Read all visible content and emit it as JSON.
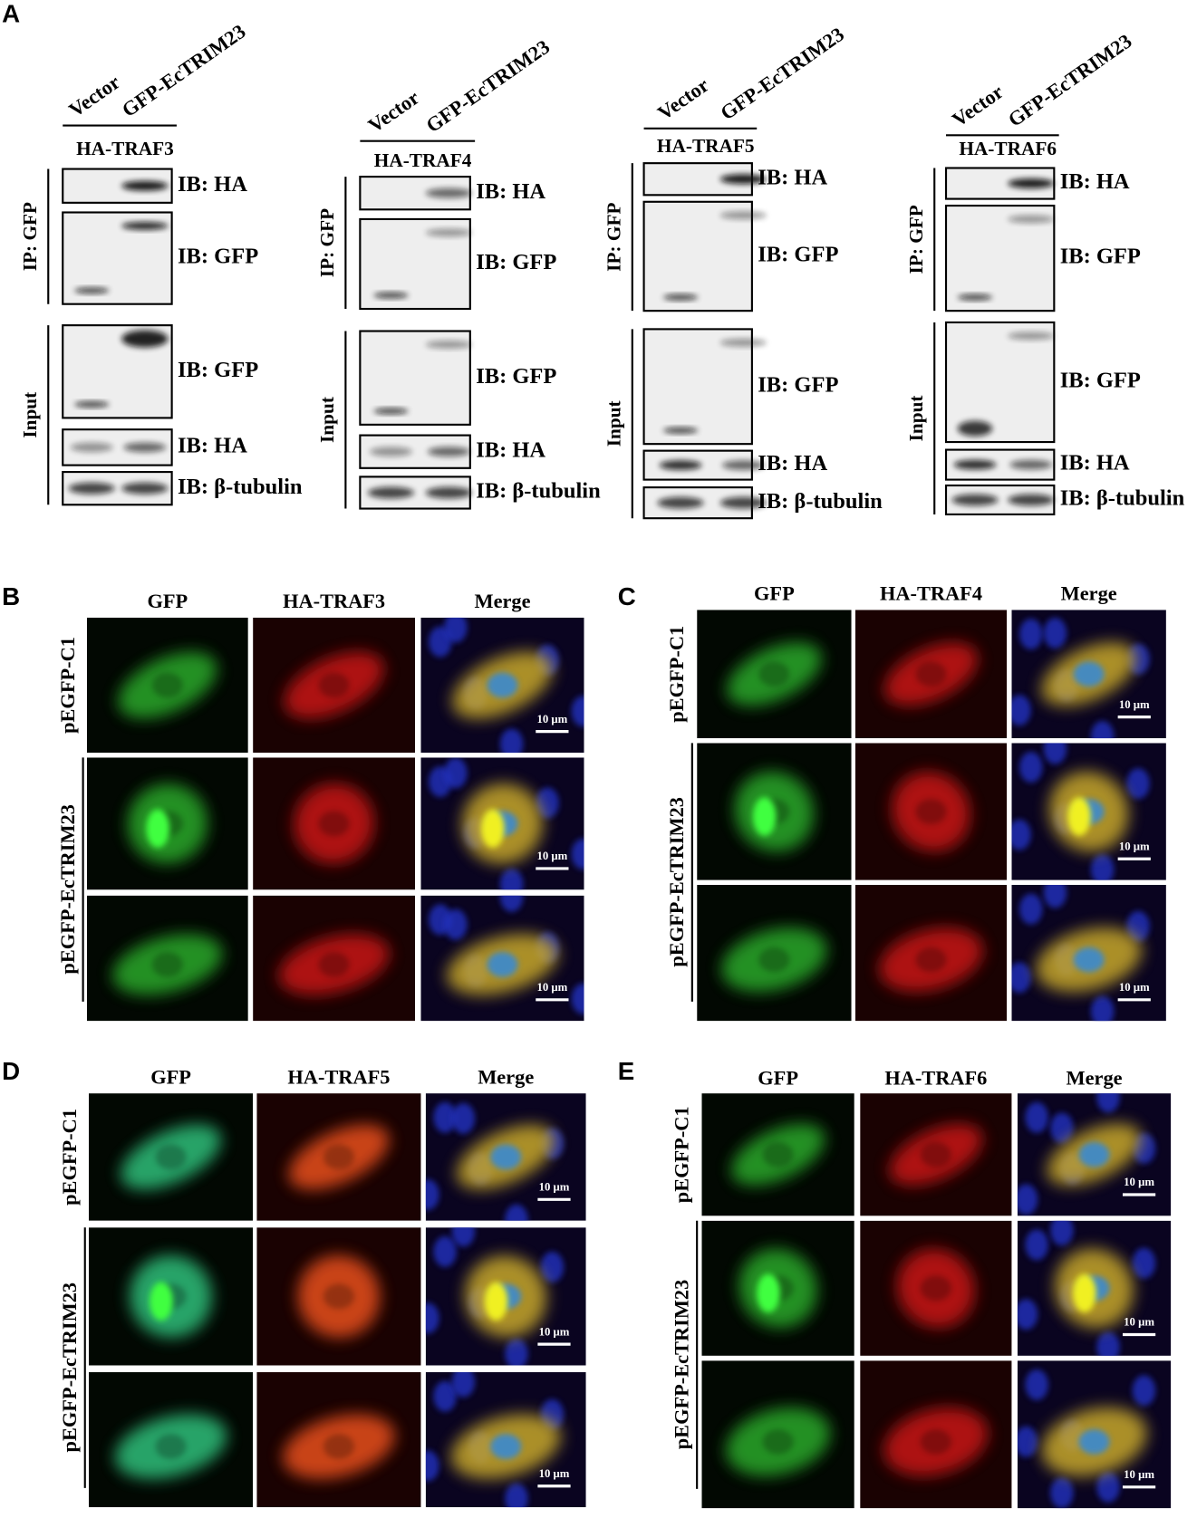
{
  "panel_a": {
    "label": "A",
    "blots": [
      {
        "lanes": [
          "Vector",
          "GFP-EcTRIM23"
        ],
        "construct": "HA-TRAF3",
        "groups": [
          "IP: GFP",
          "Input"
        ],
        "probes": [
          "IB: HA",
          "IB: GFP",
          "IB: GFP",
          "IB: HA",
          "IB: β-tubulin"
        ]
      },
      {
        "lanes": [
          "Vector",
          "GFP-EcTRIM23"
        ],
        "construct": "HA-TRAF4",
        "groups": [
          "IP: GFP",
          "Input"
        ],
        "probes": [
          "IB: HA",
          "IB: GFP",
          "IB: GFP",
          "IB: HA",
          "IB: β-tubulin"
        ]
      },
      {
        "lanes": [
          "Vector",
          "GFP-EcTRIM23"
        ],
        "construct": "HA-TRAF5",
        "groups": [
          "IP: GFP",
          "Input"
        ],
        "probes": [
          "IB: HA",
          "IB: GFP",
          "IB: GFP",
          "IB: HA",
          "IB: β-tubulin"
        ]
      },
      {
        "lanes": [
          "Vector",
          "GFP-EcTRIM23"
        ],
        "construct": "HA-TRAF6",
        "groups": [
          "IP: GFP",
          "Input"
        ],
        "probes": [
          "IB: HA",
          "IB: GFP",
          "IB: GFP",
          "IB: HA",
          "IB: β-tubulin"
        ]
      }
    ]
  },
  "panels": [
    {
      "label": "B",
      "columns": [
        "GFP",
        "HA-TRAF3",
        "Merge"
      ],
      "rows": [
        "pEGFP-C1",
        "pEGFP-EcTRIM23"
      ],
      "scale_bars": [
        "10 μm",
        "10 μm",
        "10 μm"
      ]
    },
    {
      "label": "C",
      "columns": [
        "GFP",
        "HA-TRAF4",
        "Merge"
      ],
      "rows": [
        "pEGFP-C1",
        "pEGFP-EcTRIM23"
      ],
      "scale_bars": [
        "10 μm",
        "10 μm",
        "10 μm"
      ]
    },
    {
      "label": "D",
      "columns": [
        "GFP",
        "HA-TRAF5",
        "Merge"
      ],
      "rows": [
        "pEGFP-C1",
        "pEGFP-EcTRIM23"
      ],
      "scale_bars": [
        "10 μm",
        "10 μm",
        "10 μm"
      ]
    },
    {
      "label": "E",
      "columns": [
        "GFP",
        "HA-TRAF6",
        "Merge"
      ],
      "rows": [
        "pEGFP-C1",
        "pEGFP-EcTRIM23"
      ],
      "scale_bars": [
        "10 μm",
        "10 μm",
        "10 μm"
      ]
    }
  ]
}
